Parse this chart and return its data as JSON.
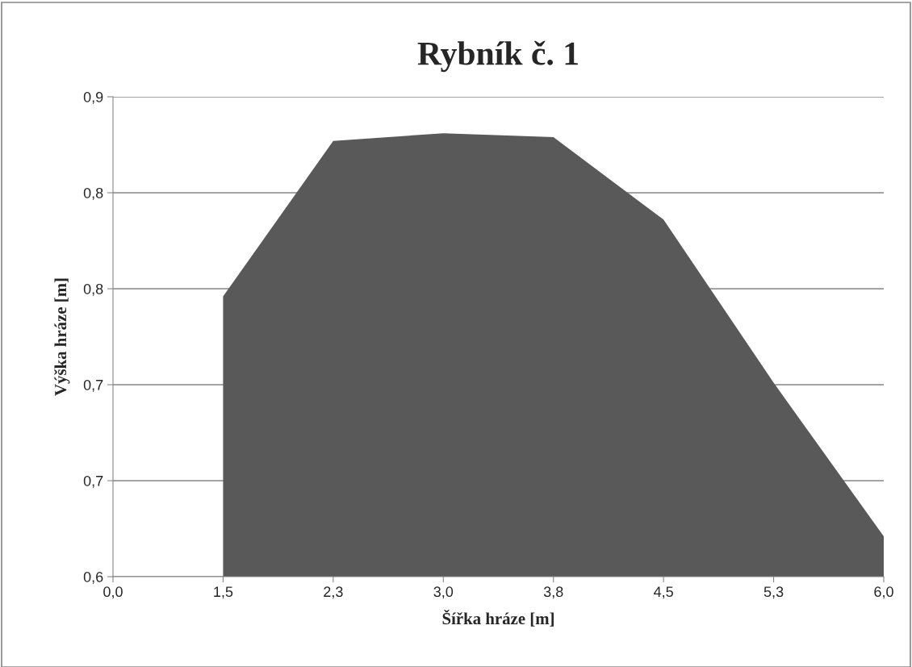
{
  "chart_data": {
    "type": "area",
    "title": "Rybník č. 1",
    "xlabel": "Šířka hráze [m]",
    "ylabel": "Výška hráze [m]",
    "categories": [
      "0,0",
      "1,5",
      "2,3",
      "3,0",
      "3,8",
      "4,5",
      "5,3",
      "6,0"
    ],
    "series": [
      {
        "color": "#595959",
        "values": [
          null,
          0.746,
          0.827,
          0.831,
          0.829,
          0.786,
          0.701,
          0.621
        ]
      }
    ],
    "ylim": [
      0.6,
      0.85
    ],
    "yticks": [
      {
        "value": 0.6,
        "label": "0,6"
      },
      {
        "value": 0.65,
        "label": "0,7"
      },
      {
        "value": 0.7,
        "label": "0,7"
      },
      {
        "value": 0.75,
        "label": "0,8"
      },
      {
        "value": 0.8,
        "label": "0,8"
      },
      {
        "value": 0.85,
        "label": "0,9"
      }
    ],
    "grid": "y",
    "legend": false
  }
}
